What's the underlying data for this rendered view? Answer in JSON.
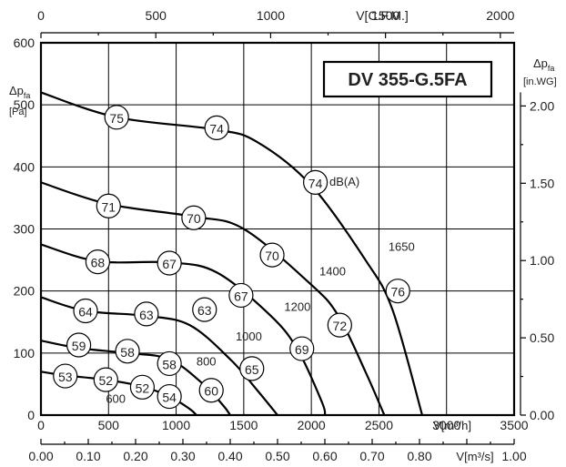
{
  "chart_data": {
    "type": "line",
    "title": "DV 355-G.5FA",
    "x_bottom": {
      "label": "V[m³/h]",
      "range": [
        0,
        3500
      ],
      "ticks": [
        "0",
        "500",
        "1000",
        "1500",
        "2000",
        "2500",
        "3000",
        "3500"
      ]
    },
    "x_bottom2": {
      "label": "V[m³/s]",
      "range": [
        0,
        1.0
      ],
      "ticks": [
        "0.00",
        "0.10",
        "0.20",
        "0.30",
        "0.40",
        "0.50",
        "0.60",
        "0.70",
        "0.80",
        "0.90",
        "1.00"
      ]
    },
    "x_top": {
      "label": "V[C.F.M.]",
      "range": [
        0,
        2000
      ],
      "ticks": [
        "0",
        "500",
        "1000",
        "1500",
        "2000"
      ]
    },
    "y_left": {
      "label_main": "Δp",
      "label_sub": "fa",
      "label_unit": "[Pa]",
      "range": [
        0,
        600
      ],
      "ticks": [
        "0",
        "100",
        "200",
        "300",
        "400",
        "500",
        "600"
      ]
    },
    "y_right": {
      "label_main": "Δp",
      "label_sub": "fa",
      "label_unit": "[in.WG]",
      "ticks": [
        "0.00",
        "0.50",
        "1.00",
        "1.50",
        "2.00"
      ]
    },
    "grid": true,
    "unit_note": "dB(A)",
    "series": [
      {
        "name": "1650",
        "points": [
          [
            0,
            520
          ],
          [
            560,
            480
          ],
          [
            1300,
            460
          ],
          [
            1600,
            440
          ],
          [
            2000,
            370
          ],
          [
            2400,
            250
          ],
          [
            2600,
            170
          ],
          [
            2820,
            0
          ]
        ],
        "markers": [
          [
            560,
            75,
            480
          ],
          [
            1300,
            74,
            463
          ],
          [
            2030,
            74,
            375
          ],
          [
            2640,
            76,
            200
          ]
        ]
      },
      {
        "name": "1400",
        "points": [
          [
            0,
            375
          ],
          [
            500,
            340
          ],
          [
            1130,
            320
          ],
          [
            1500,
            300
          ],
          [
            2000,
            210
          ],
          [
            2200,
            160
          ],
          [
            2400,
            70
          ],
          [
            2540,
            0
          ]
        ],
        "markers": [
          [
            500,
            71,
            337
          ],
          [
            1130,
            70,
            318
          ],
          [
            1710,
            70,
            258
          ],
          [
            2210,
            72,
            145
          ]
        ]
      },
      {
        "name": "1200",
        "points": [
          [
            0,
            275
          ],
          [
            420,
            248
          ],
          [
            950,
            246
          ],
          [
            1300,
            230
          ],
          [
            1700,
            160
          ],
          [
            1900,
            105
          ],
          [
            2080,
            20
          ],
          [
            2100,
            0
          ]
        ],
        "markers": [
          [
            420,
            68,
            247
          ],
          [
            950,
            67,
            245
          ],
          [
            1480,
            67,
            193
          ],
          [
            1930,
            69,
            107
          ]
        ]
      },
      {
        "name": "1000",
        "points": [
          [
            0,
            190
          ],
          [
            330,
            168
          ],
          [
            780,
            160
          ],
          [
            1100,
            145
          ],
          [
            1400,
            90
          ],
          [
            1600,
            40
          ],
          [
            1750,
            0
          ]
        ],
        "markers": [
          [
            330,
            64,
            168
          ],
          [
            780,
            63,
            163
          ],
          [
            1210,
            63,
            170
          ],
          [
            1560,
            65,
            75
          ]
        ]
      },
      {
        "name": "800",
        "points": [
          [
            0,
            120
          ],
          [
            280,
            108
          ],
          [
            640,
            100
          ],
          [
            950,
            90
          ],
          [
            1200,
            50
          ],
          [
            1350,
            15
          ],
          [
            1400,
            0
          ]
        ],
        "markers": [
          [
            280,
            59,
            113
          ],
          [
            640,
            58,
            103
          ],
          [
            950,
            58,
            83
          ],
          [
            1260,
            60,
            40
          ]
        ]
      },
      {
        "name": "600",
        "points": [
          [
            0,
            70
          ],
          [
            180,
            64
          ],
          [
            480,
            57
          ],
          [
            750,
            46
          ],
          [
            950,
            30
          ],
          [
            1100,
            10
          ],
          [
            1150,
            0
          ]
        ],
        "markers": [
          [
            180,
            53,
            63
          ],
          [
            480,
            52,
            57
          ],
          [
            750,
            52,
            45
          ],
          [
            950,
            54,
            30
          ]
        ]
      }
    ],
    "series_labels": [
      {
        "text": "1650",
        "x": 2570,
        "y": 265
      },
      {
        "text": "1400",
        "x": 2060,
        "y": 225
      },
      {
        "text": "1200",
        "x": 1800,
        "y": 168
      },
      {
        "text": "1000",
        "x": 1440,
        "y": 120
      },
      {
        "text": "800",
        "x": 1150,
        "y": 80
      },
      {
        "text": "600",
        "x": 480,
        "y": 20
      }
    ]
  }
}
